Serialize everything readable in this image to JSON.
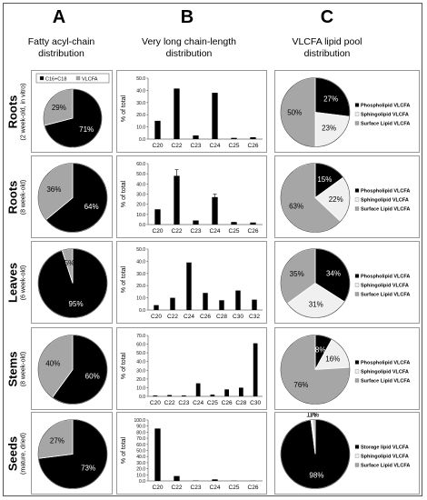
{
  "columns": [
    {
      "letter": "A",
      "desc": "Fatty acyl-chain\ndistribution"
    },
    {
      "letter": "B",
      "desc": "Very long chain-length\ndistribution"
    },
    {
      "letter": "C",
      "desc": "VLCFA lipid pool\ndistribution"
    }
  ],
  "rows": [
    {
      "tissue": "Roots",
      "age_label": "(2 week-old, in vitro)"
    },
    {
      "tissue": "Roots",
      "age_label": "(8 week-old)"
    },
    {
      "tissue": "Leaves",
      "age_label": "(6 week-old)"
    },
    {
      "tissue": "Stems",
      "age_label": "(8 week-old)"
    },
    {
      "tissue": "Seeds",
      "age_label": "(mature, dried)"
    }
  ],
  "colors": {
    "black": "#000000",
    "gray": "#a6a6a6",
    "light": "#f0f0f0"
  },
  "chart_data": [
    {
      "type": "pie",
      "panel": "A1",
      "legend": [
        "C16+C18",
        "VLCFA"
      ],
      "slices": [
        71,
        29
      ],
      "labels": [
        "71%",
        "29%"
      ],
      "colors": [
        "#000000",
        "#a6a6a6"
      ]
    },
    {
      "type": "pie",
      "panel": "A2",
      "slices": [
        64,
        36
      ],
      "labels": [
        "64%",
        "36%"
      ],
      "colors": [
        "#000000",
        "#a6a6a6"
      ]
    },
    {
      "type": "pie",
      "panel": "A3",
      "slices": [
        95,
        5
      ],
      "labels": [
        "95%",
        "5%"
      ],
      "colors": [
        "#000000",
        "#a6a6a6"
      ]
    },
    {
      "type": "pie",
      "panel": "A4",
      "slices": [
        60,
        40
      ],
      "labels": [
        "60%",
        "40%"
      ],
      "colors": [
        "#000000",
        "#a6a6a6"
      ]
    },
    {
      "type": "pie",
      "panel": "A5",
      "slices": [
        73,
        27
      ],
      "labels": [
        "73%",
        "27%"
      ],
      "colors": [
        "#000000",
        "#a6a6a6"
      ]
    },
    {
      "type": "bar",
      "panel": "B1",
      "categories": [
        "C20",
        "C22",
        "C23",
        "C24",
        "C25",
        "C26"
      ],
      "values": [
        15,
        41.5,
        3,
        38,
        1,
        1.5
      ],
      "errors": [
        0,
        0,
        0,
        0,
        0,
        0
      ],
      "ylabel": "% of total",
      "ylim": [
        0,
        50
      ],
      "yticks": [
        "0.0",
        "10.0",
        "20.0",
        "30.0",
        "40.0",
        "50.0"
      ]
    },
    {
      "type": "bar",
      "panel": "B2",
      "categories": [
        "C20",
        "C22",
        "C23",
        "C24",
        "C25",
        "C26"
      ],
      "values": [
        15,
        48,
        4,
        27,
        2.5,
        2
      ],
      "errors": [
        0,
        6,
        0,
        3,
        0,
        0
      ],
      "ylabel": "% of total",
      "ylim": [
        0,
        60
      ],
      "yticks": [
        "0.0",
        "10.0",
        "20.0",
        "30.0",
        "40.0",
        "50.0",
        "60.0"
      ]
    },
    {
      "type": "bar",
      "panel": "B3",
      "categories": [
        "C20",
        "C22",
        "C24",
        "C26",
        "C28",
        "C30",
        "C32"
      ],
      "values": [
        4,
        10,
        39,
        14,
        8,
        16,
        8.5
      ],
      "errors": [
        0,
        0,
        0,
        0,
        0,
        0,
        0
      ],
      "ylabel": "% of total",
      "ylim": [
        0,
        50
      ],
      "yticks": [
        "0.0",
        "10.0",
        "20.0",
        "30.0",
        "40.0",
        "50.0"
      ]
    },
    {
      "type": "bar",
      "panel": "B4",
      "categories": [
        "C20",
        "C22",
        "C23",
        "C24",
        "C25",
        "C26",
        "C28",
        "C30"
      ],
      "values": [
        1,
        1.5,
        1,
        15,
        2,
        8,
        10,
        61
      ],
      "errors": [
        0,
        0,
        0,
        0,
        0,
        0,
        0,
        0
      ],
      "ylabel": "% of total",
      "ylim": [
        0,
        70
      ],
      "yticks": [
        "0.0",
        "10.0",
        "20.0",
        "30.0",
        "40.0",
        "50.0",
        "60.0",
        "70.0"
      ]
    },
    {
      "type": "bar",
      "panel": "B5",
      "categories": [
        "C20",
        "C22",
        "C23",
        "C24",
        "C25",
        "C26"
      ],
      "values": [
        86,
        8,
        0.5,
        2.5,
        0.3,
        0.3
      ],
      "errors": [
        0,
        0,
        0,
        0,
        0,
        0
      ],
      "ylabel": "% of total",
      "ylim": [
        0,
        100
      ],
      "yticks": [
        "0.0",
        "10.0",
        "20.0",
        "30.0",
        "40.0",
        "50.0",
        "60.0",
        "70.0",
        "80.0",
        "90.0",
        "100.0"
      ]
    },
    {
      "type": "pie",
      "panel": "C1",
      "slices": [
        27,
        23,
        50
      ],
      "labels": [
        "27%",
        "23%",
        "50%"
      ],
      "colors": [
        "#000000",
        "#f0f0f0",
        "#a6a6a6"
      ],
      "legend": [
        "Phospholipid VLCFA",
        "Sphingolipid VLCFA",
        "Surface Lipid VLCFA"
      ]
    },
    {
      "type": "pie",
      "panel": "C2",
      "slices": [
        15,
        22,
        63
      ],
      "labels": [
        "15%",
        "22%",
        "63%"
      ],
      "colors": [
        "#000000",
        "#f0f0f0",
        "#a6a6a6"
      ],
      "legend": [
        "Phospholipid VLCFA",
        "Sphingolipid VLCFA",
        "Surface Lipid VLCFA"
      ]
    },
    {
      "type": "pie",
      "panel": "C3",
      "slices": [
        34,
        31,
        35
      ],
      "labels": [
        "34%",
        "31%",
        "35%"
      ],
      "colors": [
        "#000000",
        "#f0f0f0",
        "#a6a6a6"
      ],
      "legend": [
        "Phospholipid VLCFA",
        "Sphingolipid VLCFA",
        "Surface Lipid VLCFA"
      ]
    },
    {
      "type": "pie",
      "panel": "C4",
      "slices": [
        8,
        16,
        76
      ],
      "labels": [
        "8%",
        "16%",
        "76%"
      ],
      "colors": [
        "#000000",
        "#f0f0f0",
        "#a6a6a6"
      ],
      "legend": [
        "Phospholipid VLCFA",
        "Sphingolipid VLCFA",
        "Surface Lipid VLCFA"
      ]
    },
    {
      "type": "pie",
      "panel": "C5",
      "slices": [
        98,
        1,
        1
      ],
      "labels": [
        "98%",
        "1%",
        "1%"
      ],
      "colors": [
        "#000000",
        "#f0f0f0",
        "#a6a6a6"
      ],
      "legend": [
        "Storage lipid VLCFA",
        "Sphingolipid VLCFA",
        "Surface Lipid VLCFA"
      ]
    }
  ]
}
